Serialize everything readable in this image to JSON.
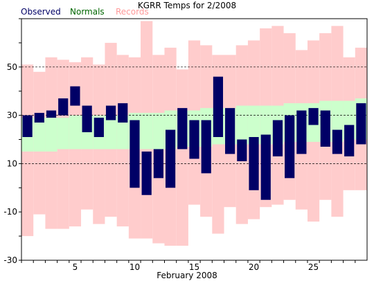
{
  "chart_data": {
    "type": "bar",
    "title": "KGRR Temps for 2/2008",
    "xlabel": "February 2008",
    "ylabel": "",
    "ylim": [
      -30,
      70
    ],
    "xlim": [
      0.5,
      29.5
    ],
    "x_ticks": [
      5,
      10,
      15,
      20,
      25
    ],
    "y_ticks": [
      -30,
      -10,
      10,
      30,
      50
    ],
    "grid": "dashed horizontal at y=10, 30, 50",
    "legend": {
      "placement": "top-left",
      "items": [
        {
          "label": "Observed",
          "color": "#000066"
        },
        {
          "label": "Normals",
          "color": "#006600"
        },
        {
          "label": "Records",
          "color": "#ff9999"
        }
      ]
    },
    "days": [
      1,
      2,
      3,
      4,
      5,
      6,
      7,
      8,
      9,
      10,
      11,
      12,
      13,
      14,
      15,
      16,
      17,
      18,
      19,
      20,
      21,
      22,
      23,
      24,
      25,
      26,
      27,
      28,
      29
    ],
    "series": [
      {
        "name": "Records",
        "color": "#ffcccc",
        "high": [
          51,
          48,
          54,
          53,
          52,
          54,
          51,
          60,
          55,
          54,
          69,
          55,
          58,
          49,
          61,
          59,
          55,
          55,
          59,
          61,
          66,
          67,
          64,
          57,
          61,
          64,
          67,
          54,
          58
        ],
        "low": [
          -20,
          -11,
          -17,
          -17,
          -16,
          -9,
          -15,
          -12,
          -16,
          -21,
          -21,
          -23,
          -24,
          -24,
          -7,
          -12,
          -19,
          -8,
          -15,
          -13,
          -8,
          -7,
          -5,
          -9,
          -14,
          -5,
          -12,
          -1,
          -1
        ]
      },
      {
        "name": "Normals",
        "color": "#ccffcc",
        "high": [
          29,
          29,
          29,
          29,
          30,
          30,
          30,
          30,
          30,
          31,
          31,
          31,
          32,
          32,
          32,
          33,
          33,
          33,
          34,
          34,
          34,
          34,
          35,
          35,
          35,
          36,
          36,
          36,
          37
        ],
        "low": [
          15,
          15,
          15,
          16,
          16,
          16,
          16,
          16,
          16,
          16,
          16,
          16,
          16,
          17,
          17,
          17,
          18,
          18,
          18,
          18,
          18,
          18,
          19,
          19,
          19,
          19,
          19,
          20,
          20
        ]
      },
      {
        "name": "Observed",
        "color": "#000066",
        "high": [
          30,
          31,
          32,
          37,
          42,
          34,
          29,
          34,
          35,
          28,
          15,
          16,
          24,
          33,
          28,
          28,
          46,
          33,
          20,
          21,
          22,
          28,
          30,
          32,
          33,
          32,
          24,
          26,
          35
        ],
        "low": [
          21,
          27,
          29,
          30,
          34,
          23,
          21,
          28,
          27,
          0,
          -3,
          4,
          0,
          16,
          12,
          6,
          21,
          14,
          11,
          -1,
          -5,
          13,
          4,
          14,
          26,
          17,
          14,
          13,
          18
        ]
      }
    ]
  }
}
